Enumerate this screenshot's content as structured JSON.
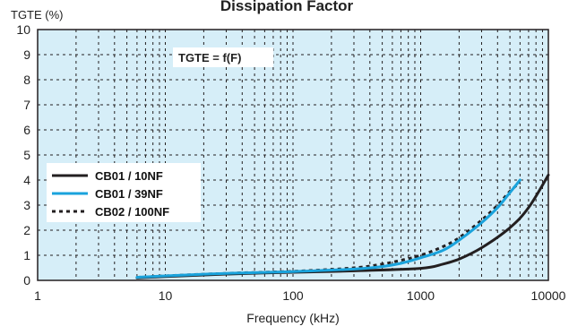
{
  "chart_data": {
    "type": "line",
    "title": "Dissipation Factor",
    "xlabel": "Frequency (kHz)",
    "ylabel": "TGTE (%)",
    "annotation": "TGTE = f(F)",
    "x_scale": "log",
    "xlim": [
      1,
      10000
    ],
    "ylim": [
      0,
      10
    ],
    "xticks": [
      1,
      10,
      100,
      1000,
      10000
    ],
    "xtick_labels": [
      "1",
      "10",
      "100",
      "1000",
      "10000"
    ],
    "yticks": [
      0,
      1,
      2,
      3,
      4,
      5,
      6,
      7,
      8,
      9,
      10
    ],
    "ytick_labels": [
      "0",
      "1",
      "2",
      "3",
      "4",
      "5",
      "6",
      "7",
      "8",
      "9",
      "10"
    ],
    "grid": true,
    "legend_position": "middle-left",
    "plot_background": "#d6eef8",
    "series": [
      {
        "name": "CB01 / 10NF",
        "color": "#231f20",
        "dash": "solid",
        "x": [
          6,
          10,
          30,
          100,
          300,
          1000,
          1500,
          2000,
          3000,
          5000,
          7000,
          10000
        ],
        "y": [
          0.1,
          0.15,
          0.25,
          0.32,
          0.38,
          0.48,
          0.65,
          0.85,
          1.3,
          2.1,
          2.9,
          4.2
        ]
      },
      {
        "name": "CB01 / 39NF",
        "color": "#1aa3dc",
        "dash": "solid",
        "x": [
          6,
          10,
          30,
          100,
          300,
          500,
          700,
          1000,
          1500,
          2000,
          3000,
          4000,
          5000,
          6000
        ],
        "y": [
          0.12,
          0.18,
          0.28,
          0.35,
          0.45,
          0.55,
          0.68,
          0.9,
          1.2,
          1.6,
          2.3,
          2.9,
          3.5,
          4.0
        ]
      },
      {
        "name": "CB02 / 100NF",
        "color": "#231f20",
        "dash": "dotted",
        "x": [
          6,
          10,
          30,
          100,
          300,
          500,
          700,
          1000,
          1500,
          2000,
          3000,
          4000,
          5000,
          6000
        ],
        "y": [
          0.12,
          0.18,
          0.28,
          0.36,
          0.5,
          0.65,
          0.8,
          1.0,
          1.35,
          1.7,
          2.4,
          3.0,
          3.55,
          3.9
        ]
      }
    ]
  }
}
